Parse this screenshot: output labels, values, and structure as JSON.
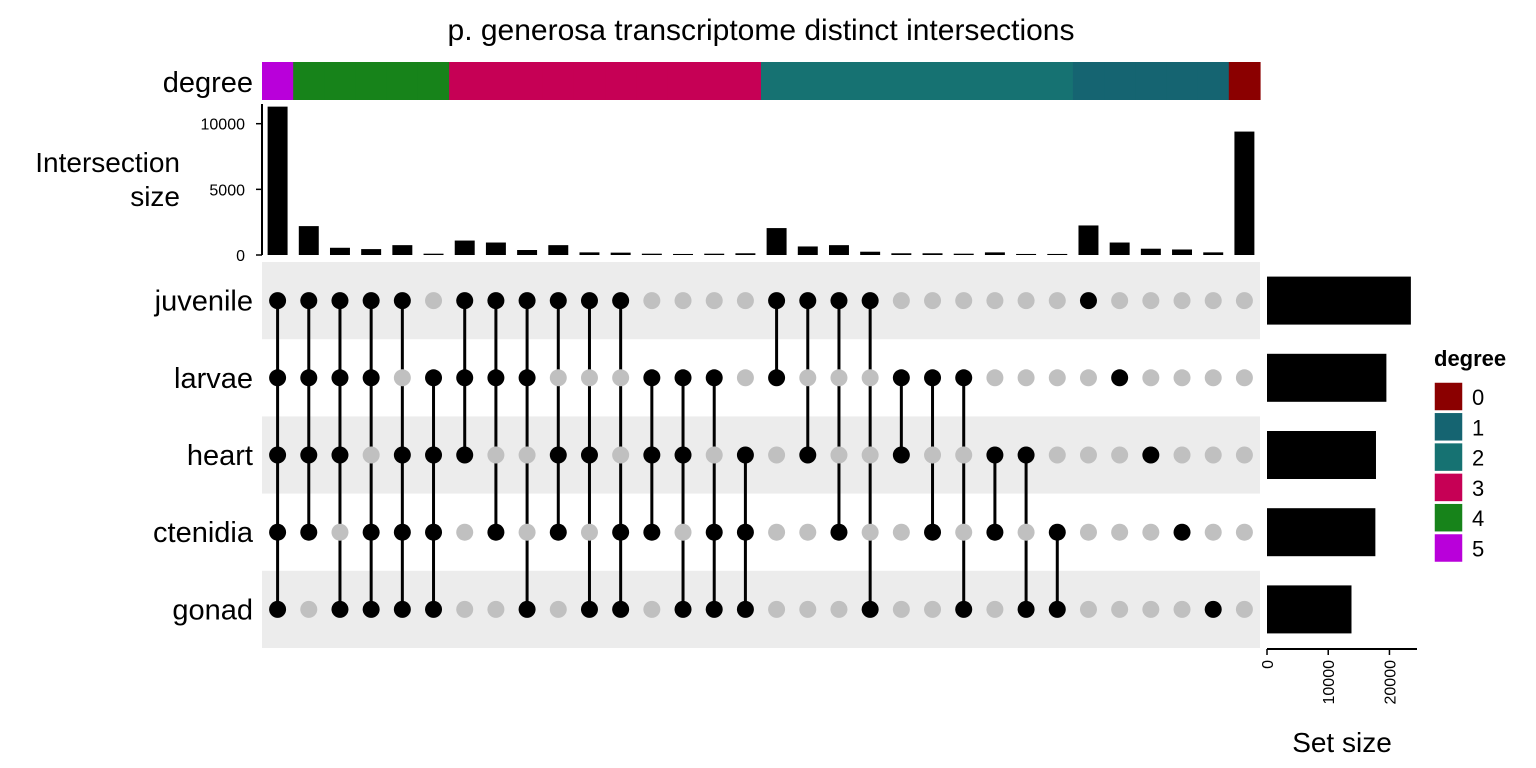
{
  "chart_data": {
    "type": "bar",
    "title": "p. generosa transcriptome distinct intersections",
    "top_label": "Intersection size",
    "degree_label": "degree",
    "set_size_label": "Set size",
    "legend": {
      "title": "degree",
      "items": [
        {
          "label": "0",
          "color": "#8B0000"
        },
        {
          "label": "1",
          "color": "#156471"
        },
        {
          "label": "2",
          "color": "#167272"
        },
        {
          "label": "3",
          "color": "#C60055"
        },
        {
          "label": "4",
          "color": "#17831A"
        },
        {
          "label": "5",
          "color": "#B900DA"
        }
      ]
    },
    "colors": {
      "bar": "#000000",
      "dot_on": "#000000",
      "dot_off": "#C0C0C0",
      "band": "#ECECEC"
    },
    "sets": [
      {
        "name": "juvenile",
        "size": 23500
      },
      {
        "name": "larvae",
        "size": 19500
      },
      {
        "name": "heart",
        "size": 17800
      },
      {
        "name": "ctenidia",
        "size": 17700
      },
      {
        "name": "gonad",
        "size": 13800
      }
    ],
    "intersection_axis": {
      "ylim": [
        0,
        11500
      ],
      "ticks": [
        0,
        5000,
        10000
      ]
    },
    "set_axis": {
      "xlim": [
        0,
        24500
      ],
      "ticks": [
        0,
        10000,
        20000
      ]
    },
    "intersections": [
      {
        "members": [
          "juvenile",
          "larvae",
          "heart",
          "ctenidia",
          "gonad"
        ],
        "degree": 5,
        "size": 11300
      },
      {
        "members": [
          "juvenile",
          "larvae",
          "heart",
          "ctenidia"
        ],
        "degree": 4,
        "size": 2200
      },
      {
        "members": [
          "juvenile",
          "larvae",
          "heart",
          "gonad"
        ],
        "degree": 4,
        "size": 550
      },
      {
        "members": [
          "juvenile",
          "larvae",
          "ctenidia",
          "gonad"
        ],
        "degree": 4,
        "size": 450
      },
      {
        "members": [
          "juvenile",
          "heart",
          "ctenidia",
          "gonad"
        ],
        "degree": 4,
        "size": 750
      },
      {
        "members": [
          "larvae",
          "heart",
          "ctenidia",
          "gonad"
        ],
        "degree": 4,
        "size": 100
      },
      {
        "members": [
          "juvenile",
          "larvae",
          "heart"
        ],
        "degree": 3,
        "size": 1100
      },
      {
        "members": [
          "juvenile",
          "larvae",
          "ctenidia"
        ],
        "degree": 3,
        "size": 950
      },
      {
        "members": [
          "juvenile",
          "larvae",
          "gonad"
        ],
        "degree": 3,
        "size": 380
      },
      {
        "members": [
          "juvenile",
          "heart",
          "ctenidia"
        ],
        "degree": 3,
        "size": 750
      },
      {
        "members": [
          "juvenile",
          "heart",
          "gonad"
        ],
        "degree": 3,
        "size": 200
      },
      {
        "members": [
          "juvenile",
          "ctenidia",
          "gonad"
        ],
        "degree": 3,
        "size": 180
      },
      {
        "members": [
          "larvae",
          "heart",
          "ctenidia"
        ],
        "degree": 3,
        "size": 100
      },
      {
        "members": [
          "larvae",
          "heart",
          "gonad"
        ],
        "degree": 3,
        "size": 80
      },
      {
        "members": [
          "larvae",
          "ctenidia",
          "gonad"
        ],
        "degree": 3,
        "size": 100
      },
      {
        "members": [
          "heart",
          "ctenidia",
          "gonad"
        ],
        "degree": 3,
        "size": 130
      },
      {
        "members": [
          "juvenile",
          "larvae"
        ],
        "degree": 2,
        "size": 2050
      },
      {
        "members": [
          "juvenile",
          "heart"
        ],
        "degree": 2,
        "size": 650
      },
      {
        "members": [
          "juvenile",
          "ctenidia"
        ],
        "degree": 2,
        "size": 750
      },
      {
        "members": [
          "juvenile",
          "gonad"
        ],
        "degree": 2,
        "size": 250
      },
      {
        "members": [
          "larvae",
          "heart"
        ],
        "degree": 2,
        "size": 130
      },
      {
        "members": [
          "larvae",
          "ctenidia"
        ],
        "degree": 2,
        "size": 130
      },
      {
        "members": [
          "larvae",
          "gonad"
        ],
        "degree": 2,
        "size": 100
      },
      {
        "members": [
          "heart",
          "ctenidia"
        ],
        "degree": 2,
        "size": 200
      },
      {
        "members": [
          "heart",
          "gonad"
        ],
        "degree": 2,
        "size": 80
      },
      {
        "members": [
          "ctenidia",
          "gonad"
        ],
        "degree": 2,
        "size": 80
      },
      {
        "members": [
          "juvenile"
        ],
        "degree": 1,
        "size": 2250
      },
      {
        "members": [
          "larvae"
        ],
        "degree": 1,
        "size": 950
      },
      {
        "members": [
          "heart"
        ],
        "degree": 1,
        "size": 480
      },
      {
        "members": [
          "ctenidia"
        ],
        "degree": 1,
        "size": 420
      },
      {
        "members": [
          "gonad"
        ],
        "degree": 1,
        "size": 200
      },
      {
        "members": [],
        "degree": 0,
        "size": 9400
      }
    ]
  }
}
